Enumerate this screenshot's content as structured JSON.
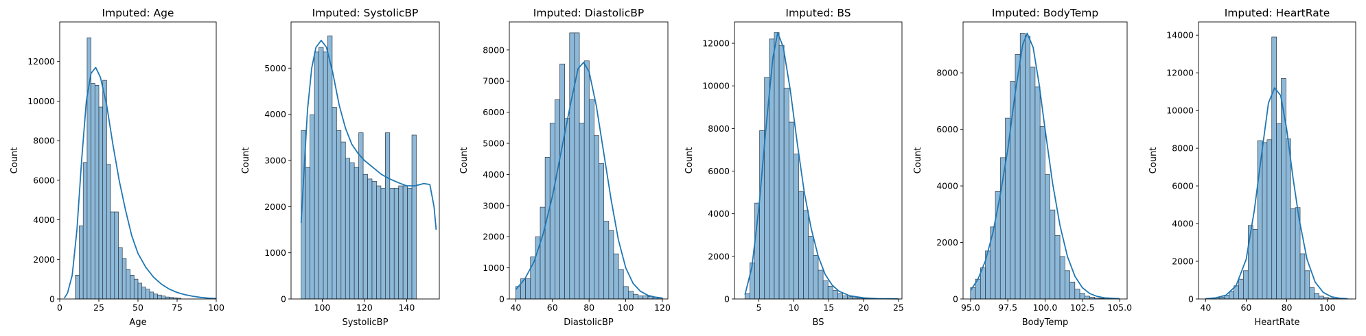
{
  "chart_data": [
    {
      "type": "histogram",
      "title": "Imputed: Age",
      "xlabel": "Age",
      "ylabel": "Count",
      "xlim": [
        0,
        100
      ],
      "ylim": [
        0,
        14000
      ],
      "xticks": [
        0,
        25,
        50,
        75,
        100
      ],
      "xtick_labels": [
        "0",
        "25",
        "50",
        "75",
        "100"
      ],
      "yticks": [
        0,
        2000,
        4000,
        6000,
        8000,
        10000,
        12000
      ],
      "ytick_labels": [
        "0",
        "2000",
        "4000",
        "6000",
        "8000",
        "10000",
        "12000"
      ],
      "bins": {
        "start": 10,
        "width": 2.5
      },
      "values": [
        1200,
        3700,
        6900,
        13200,
        10900,
        10800,
        9700,
        11050,
        6800,
        4400,
        4400,
        2600,
        2050,
        1500,
        1200,
        1000,
        800,
        600,
        500,
        350,
        250,
        200,
        150,
        100,
        80,
        60,
        40
      ],
      "kde": [
        [
          3,
          50
        ],
        [
          5,
          300
        ],
        [
          8,
          1200
        ],
        [
          11,
          3500
        ],
        [
          14,
          7000
        ],
        [
          17,
          10000
        ],
        [
          20,
          11400
        ],
        [
          23,
          11700
        ],
        [
          26,
          11200
        ],
        [
          30,
          9800
        ],
        [
          34,
          7800
        ],
        [
          38,
          6000
        ],
        [
          42,
          4500
        ],
        [
          46,
          3200
        ],
        [
          50,
          2300
        ],
        [
          55,
          1600
        ],
        [
          60,
          1100
        ],
        [
          65,
          750
        ],
        [
          70,
          500
        ],
        [
          75,
          330
        ],
        [
          80,
          220
        ],
        [
          85,
          140
        ],
        [
          90,
          80
        ],
        [
          95,
          40
        ],
        [
          100,
          20
        ]
      ]
    },
    {
      "type": "histogram",
      "title": "Imputed: SystolicBP",
      "xlabel": "SystolicBP",
      "ylabel": "Count",
      "xlim": [
        85.2,
        155.5
      ],
      "ylim": [
        0,
        6000
      ],
      "xticks": [
        100,
        120,
        140
      ],
      "xtick_labels": [
        "100",
        "120",
        "140"
      ],
      "yticks": [
        0,
        1000,
        2000,
        3000,
        4000,
        5000
      ],
      "ytick_labels": [
        "0",
        "1000",
        "2000",
        "3000",
        "4000",
        "5000"
      ],
      "bins": {
        "start": 90,
        "width": 2.1
      },
      "values": [
        3650,
        2850,
        3990,
        5350,
        5450,
        5350,
        5700,
        4150,
        3650,
        3400,
        3050,
        2950,
        2850,
        3600,
        2700,
        2600,
        2550,
        2450,
        2400,
        3600,
        2400,
        2400,
        2450,
        2450,
        2400,
        3550
      ],
      "kde": [
        [
          90,
          1650
        ],
        [
          91.5,
          2900
        ],
        [
          93,
          4100
        ],
        [
          95,
          5000
        ],
        [
          97,
          5450
        ],
        [
          99.5,
          5600
        ],
        [
          102,
          5450
        ],
        [
          105,
          4900
        ],
        [
          108,
          4200
        ],
        [
          111,
          3700
        ],
        [
          114,
          3350
        ],
        [
          117,
          3150
        ],
        [
          120,
          3000
        ],
        [
          124,
          2850
        ],
        [
          128,
          2700
        ],
        [
          132,
          2600
        ],
        [
          136,
          2520
        ],
        [
          140,
          2450
        ],
        [
          144,
          2450
        ],
        [
          148,
          2500
        ],
        [
          151,
          2480
        ],
        [
          153,
          2000
        ],
        [
          154,
          1500
        ]
      ]
    },
    {
      "type": "histogram",
      "title": "Imputed: DiastolicBP",
      "xlabel": "DiastolicBP",
      "ylabel": "Count",
      "xlim": [
        36.5,
        123
      ],
      "ylim": [
        0,
        8900
      ],
      "xticks": [
        40,
        60,
        80,
        100,
        120
      ],
      "xtick_labels": [
        "40",
        "60",
        "80",
        "100",
        "120"
      ],
      "yticks": [
        0,
        1000,
        2000,
        3000,
        4000,
        5000,
        6000,
        7000,
        8000
      ],
      "ytick_labels": [
        "0",
        "1000",
        "2000",
        "3000",
        "4000",
        "5000",
        "6000",
        "7000",
        "8000"
      ],
      "bins": {
        "start": 40,
        "width": 2.67
      },
      "values": [
        400,
        650,
        650,
        1350,
        2000,
        2950,
        4550,
        5650,
        6400,
        7550,
        5800,
        8550,
        8550,
        5650,
        7650,
        6400,
        5250,
        4350,
        2500,
        2200,
        1450,
        950,
        400,
        250,
        150,
        100,
        100,
        80,
        50,
        30
      ],
      "kde": [
        [
          40,
          300
        ],
        [
          45,
          650
        ],
        [
          50,
          1200
        ],
        [
          55,
          2100
        ],
        [
          60,
          3300
        ],
        [
          65,
          4800
        ],
        [
          70,
          6300
        ],
        [
          74,
          7400
        ],
        [
          77,
          7600
        ],
        [
          80,
          7300
        ],
        [
          84,
          6200
        ],
        [
          88,
          4700
        ],
        [
          92,
          3200
        ],
        [
          96,
          1900
        ],
        [
          100,
          1000
        ],
        [
          104,
          500
        ],
        [
          108,
          250
        ],
        [
          112,
          120
        ],
        [
          116,
          60
        ],
        [
          120,
          30
        ]
      ]
    },
    {
      "type": "histogram",
      "title": "Imputed: BS",
      "xlabel": "BS",
      "ylabel": "Count",
      "xlim": [
        1.5,
        25.5
      ],
      "ylim": [
        0,
        13000
      ],
      "xticks": [
        5,
        10,
        15,
        20,
        25
      ],
      "xtick_labels": [
        "5",
        "10",
        "15",
        "20",
        "25"
      ],
      "bins": {
        "start": 3,
        "width": 0.7
      },
      "yticks": [
        0,
        2000,
        4000,
        6000,
        8000,
        10000,
        12000
      ],
      "ytick_labels": [
        "0",
        "2000",
        "4000",
        "6000",
        "8000",
        "10000",
        "12000"
      ],
      "values": [
        250,
        1700,
        4500,
        7900,
        10400,
        12200,
        12500,
        11900,
        9900,
        8300,
        6800,
        5050,
        4150,
        2950,
        2050,
        1350,
        850,
        600,
        400,
        250,
        150,
        100,
        60,
        40,
        30,
        20,
        10,
        10,
        5,
        5,
        5,
        5
      ],
      "kde": [
        [
          3,
          200
        ],
        [
          4,
          1500
        ],
        [
          5,
          4300
        ],
        [
          6,
          8000
        ],
        [
          7,
          11300
        ],
        [
          7.7,
          12500
        ],
        [
          8.5,
          11800
        ],
        [
          9.5,
          9800
        ],
        [
          10.5,
          7300
        ],
        [
          11.5,
          5000
        ],
        [
          12.5,
          3300
        ],
        [
          13.5,
          2000
        ],
        [
          14.5,
          1150
        ],
        [
          15.5,
          650
        ],
        [
          16.5,
          360
        ],
        [
          18,
          150
        ],
        [
          20,
          50
        ],
        [
          22,
          15
        ],
        [
          25,
          5
        ]
      ]
    },
    {
      "type": "histogram",
      "title": "Imputed: BodyTemp",
      "xlabel": "BodyTemp",
      "ylabel": "Count",
      "xlim": [
        94.5,
        105.5
      ],
      "ylim": [
        0,
        9800
      ],
      "xticks": [
        95.0,
        97.5,
        100.0,
        102.5,
        105.0
      ],
      "xtick_labels": [
        "95.0",
        "97.5",
        "100.0",
        "102.5",
        "105.0"
      ],
      "yticks": [
        0,
        2000,
        4000,
        6000,
        8000
      ],
      "ytick_labels": [
        "0",
        "2000",
        "4000",
        "6000",
        "8000"
      ],
      "bins": {
        "start": 95,
        "width": 0.333
      },
      "values": [
        400,
        700,
        1100,
        1700,
        2550,
        3800,
        5000,
        6400,
        7700,
        8650,
        9400,
        9300,
        8200,
        7500,
        6100,
        4400,
        3150,
        2250,
        1500,
        1000,
        600,
        350,
        200,
        100,
        60,
        30,
        20,
        10,
        5,
        5
      ],
      "kde": [
        [
          95,
          300
        ],
        [
          95.5,
          700
        ],
        [
          96,
          1350
        ],
        [
          96.5,
          2350
        ],
        [
          97,
          3700
        ],
        [
          97.5,
          5300
        ],
        [
          98,
          7300
        ],
        [
          98.5,
          9000
        ],
        [
          98.8,
          9400
        ],
        [
          99.2,
          8900
        ],
        [
          99.6,
          7600
        ],
        [
          100,
          6000
        ],
        [
          100.5,
          4100
        ],
        [
          101,
          2600
        ],
        [
          101.5,
          1500
        ],
        [
          102,
          800
        ],
        [
          102.5,
          400
        ],
        [
          103,
          190
        ],
        [
          103.5,
          90
        ],
        [
          104,
          40
        ],
        [
          105,
          10
        ]
      ]
    },
    {
      "type": "histogram",
      "title": "Imputed: HeartRate",
      "xlabel": "HeartRate",
      "ylabel": "Count",
      "xlim": [
        36.5,
        114
      ],
      "ylim": [
        0,
        14700
      ],
      "xticks": [
        40,
        60,
        80,
        100
      ],
      "xtick_labels": [
        "40",
        "60",
        "80",
        "100"
      ],
      "yticks": [
        0,
        2000,
        4000,
        6000,
        8000,
        10000,
        12000,
        14000
      ],
      "ytick_labels": [
        "0",
        "2000",
        "4000",
        "6000",
        "8000",
        "10000",
        "12000",
        "14000"
      ],
      "bins": {
        "start": 40,
        "width": 2.33
      },
      "values": [
        20,
        40,
        60,
        100,
        200,
        400,
        700,
        1050,
        1500,
        3900,
        3700,
        8400,
        8300,
        8450,
        13900,
        9300,
        11700,
        8500,
        4800,
        4850,
        2400,
        1500,
        600,
        300,
        150,
        80,
        40,
        20,
        10,
        10,
        5
      ],
      "kde": [
        [
          40,
          10
        ],
        [
          45,
          60
        ],
        [
          50,
          200
        ],
        [
          55,
          700
        ],
        [
          60,
          2100
        ],
        [
          64,
          4700
        ],
        [
          68,
          8000
        ],
        [
          71,
          10400
        ],
        [
          74,
          11200
        ],
        [
          77,
          10800
        ],
        [
          80,
          9000
        ],
        [
          83,
          6500
        ],
        [
          86,
          4300
        ],
        [
          90,
          2100
        ],
        [
          94,
          900
        ],
        [
          98,
          350
        ],
        [
          102,
          120
        ],
        [
          106,
          40
        ],
        [
          110,
          10
        ]
      ]
    }
  ],
  "style": {
    "bar_fill": "#8db8d8",
    "bar_edge": "#2b3a47",
    "kde_line": "#1f77b4"
  }
}
